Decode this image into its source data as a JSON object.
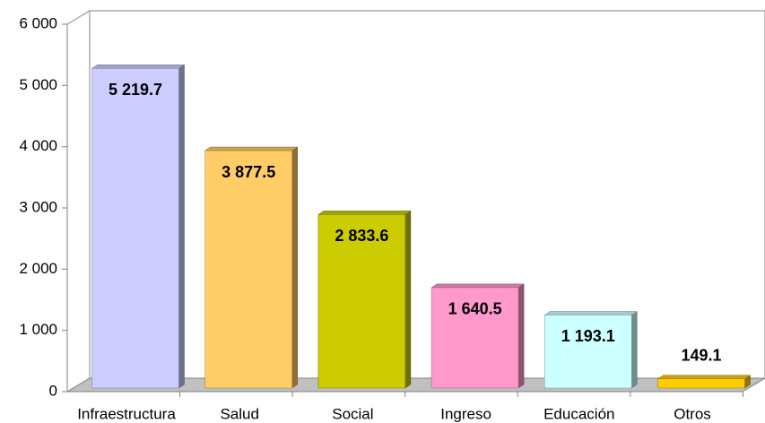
{
  "chart_data": {
    "type": "bar",
    "categories": [
      "Infraestructura",
      "Salud",
      "Social",
      "Ingreso",
      "Educación",
      "Otros"
    ],
    "values": [
      5219.7,
      3877.5,
      2833.6,
      1640.5,
      1193.1,
      149.1
    ],
    "value_labels": [
      "5 219.7",
      "3 877.5",
      "2 833.6",
      "1 640.5",
      "1 193.1",
      "149.1"
    ],
    "colors": [
      "#ccccff",
      "#ffcc66",
      "#cccc00",
      "#ff99cc",
      "#ccffff",
      "#ffcc00"
    ],
    "ylim": [
      0,
      6000
    ],
    "yticks": [
      0,
      {
        "value": 1000,
        "label": "1 000"
      },
      {
        "value": 2000,
        "label": "2 000"
      },
      {
        "value": 3000,
        "label": "3 000"
      },
      {
        "value": 4000,
        "label": "4 000"
      },
      {
        "value": 5000,
        "label": "5 000"
      },
      {
        "value": 6000,
        "label": "6 000"
      }
    ],
    "grid": false
  }
}
